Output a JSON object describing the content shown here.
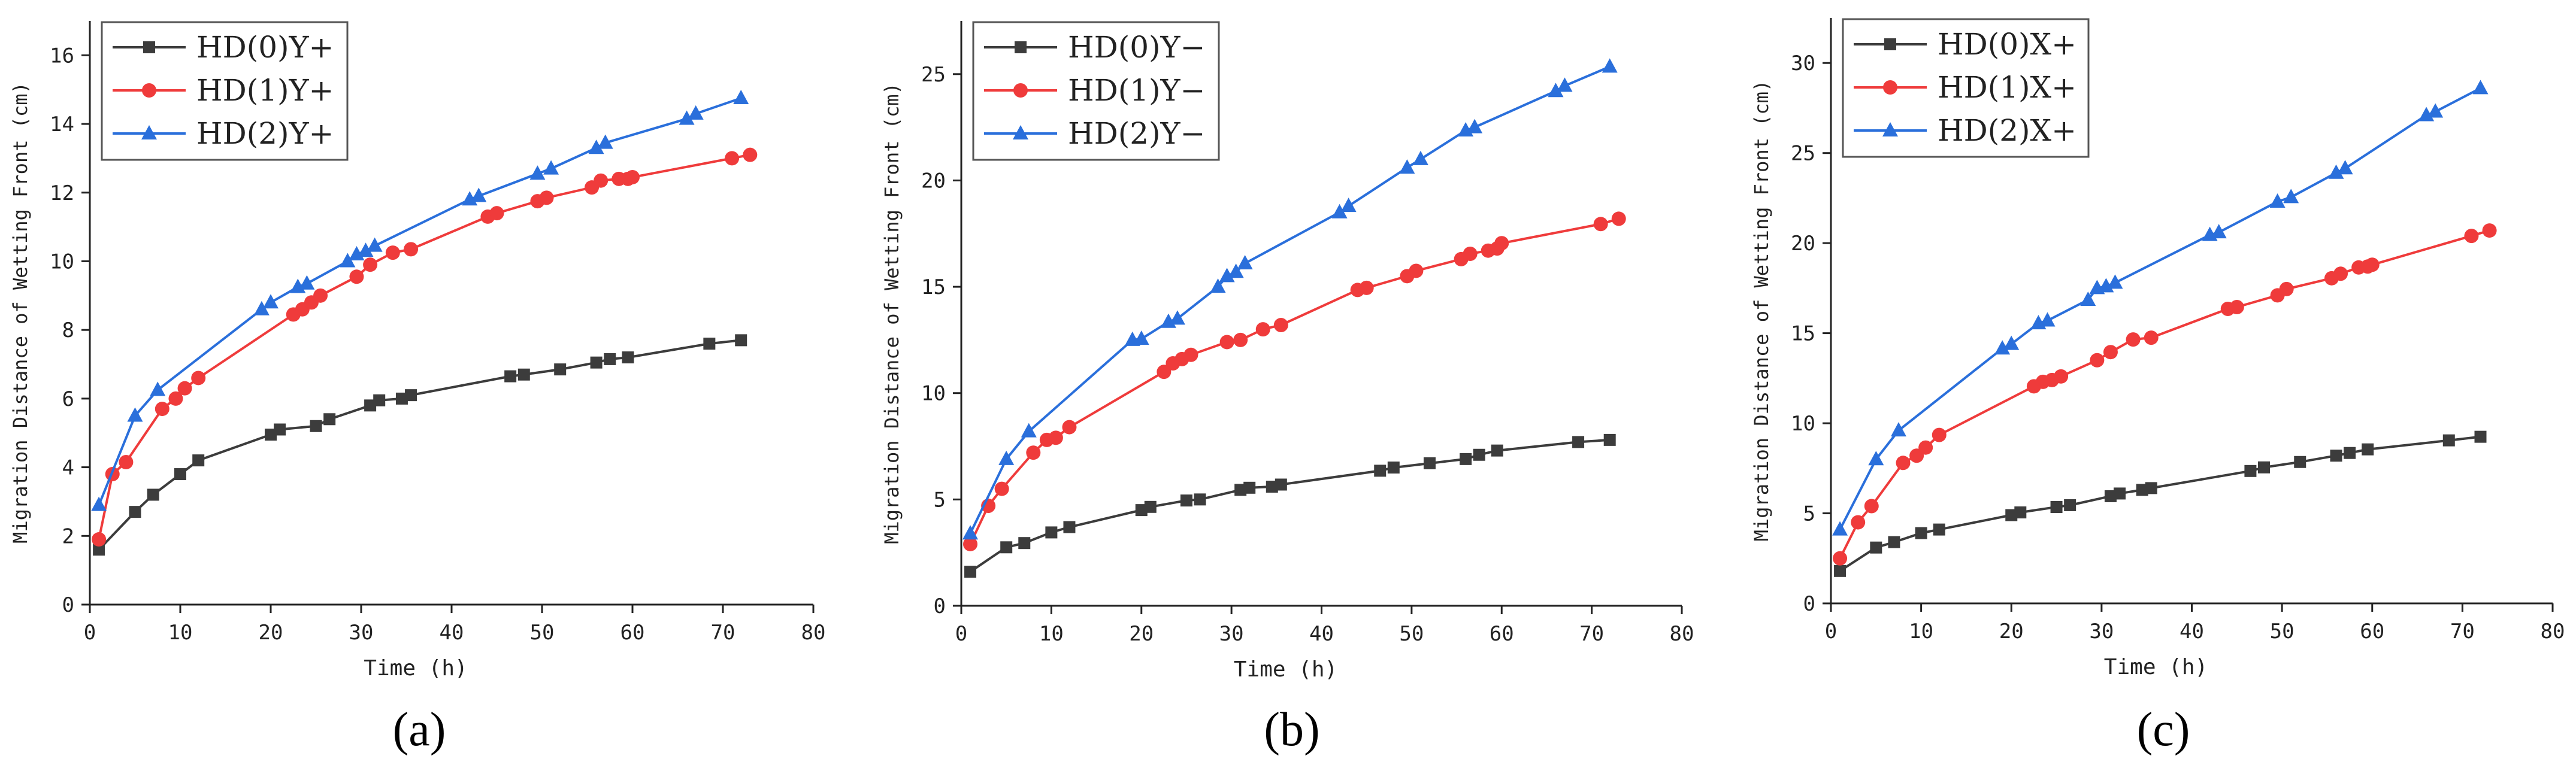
{
  "figure": {
    "colors": {
      "hd0": "#3c3c3c",
      "hd1": "#ef3b3b",
      "hd2": "#2a6fdb"
    }
  },
  "chart_data": [
    {
      "type": "line",
      "panel": "(a)",
      "xlabel": "Time (h)",
      "ylabel": "Migration Distance of Wetting Front (cm)",
      "xlim": [
        0,
        80
      ],
      "ylim": [
        0,
        17
      ],
      "xticks": [
        0,
        10,
        20,
        30,
        40,
        50,
        60,
        70,
        80
      ],
      "yticks": [
        0,
        2,
        4,
        6,
        8,
        10,
        12,
        14,
        16
      ],
      "legend_position": "top-left",
      "series": [
        {
          "name": "HD(0)Y+",
          "marker": "square",
          "color": "#3c3c3c",
          "x": [
            1,
            5,
            7,
            10,
            12,
            20,
            21,
            25,
            26.5,
            31,
            32,
            34.5,
            35.5,
            46.5,
            48,
            52,
            56,
            57.5,
            59.5,
            68.5,
            72
          ],
          "y": [
            1.6,
            2.7,
            3.2,
            3.8,
            4.2,
            4.95,
            5.1,
            5.2,
            5.4,
            5.8,
            5.95,
            6.0,
            6.1,
            6.65,
            6.7,
            6.85,
            7.05,
            7.15,
            7.2,
            7.6,
            7.7
          ]
        },
        {
          "name": "HD(1)Y+",
          "marker": "circle",
          "color": "#ef3b3b",
          "x": [
            1,
            2.5,
            4,
            8,
            9.5,
            10.5,
            12,
            22.5,
            23.5,
            24.5,
            25.5,
            29.5,
            31,
            33.5,
            35.5,
            44,
            45,
            49.5,
            50.5,
            55.5,
            56.5,
            58.5,
            59.5,
            60,
            71,
            73
          ],
          "y": [
            1.9,
            3.8,
            4.15,
            5.7,
            6.0,
            6.3,
            6.6,
            8.45,
            8.6,
            8.8,
            9.0,
            9.55,
            9.9,
            10.25,
            10.35,
            11.3,
            11.4,
            11.75,
            11.85,
            12.15,
            12.35,
            12.4,
            12.4,
            12.45,
            13.0,
            13.1
          ]
        },
        {
          "name": "HD(2)Y+",
          "marker": "triangle",
          "color": "#2a6fdb",
          "x": [
            1,
            5,
            7.5,
            19,
            20,
            23,
            24,
            28.5,
            29.5,
            30.5,
            31.5,
            42,
            43,
            49.5,
            51,
            56,
            57,
            66,
            67,
            72
          ],
          "y": [
            2.9,
            5.5,
            6.25,
            8.6,
            8.8,
            9.25,
            9.35,
            10.0,
            10.2,
            10.3,
            10.45,
            11.8,
            11.9,
            12.55,
            12.7,
            13.3,
            13.45,
            14.15,
            14.3,
            14.75
          ]
        }
      ]
    },
    {
      "type": "line",
      "panel": "(b)",
      "xlabel": "Time (h)",
      "ylabel": "Migration Distance of Wetting Front (cm)",
      "xlim": [
        0,
        80
      ],
      "ylim": [
        0,
        27.5
      ],
      "xticks": [
        0,
        10,
        20,
        30,
        40,
        50,
        60,
        70,
        80
      ],
      "yticks": [
        0,
        5,
        10,
        15,
        20,
        25
      ],
      "legend_position": "top-left",
      "series": [
        {
          "name": "HD(0)Y−",
          "marker": "square",
          "color": "#3c3c3c",
          "x": [
            1,
            5,
            7,
            10,
            12,
            20,
            21,
            25,
            26.5,
            31,
            32,
            34.5,
            35.5,
            46.5,
            48,
            52,
            56,
            57.5,
            59.5,
            68.5,
            72
          ],
          "y": [
            1.6,
            2.75,
            2.95,
            3.45,
            3.7,
            4.5,
            4.65,
            4.95,
            5.0,
            5.45,
            5.55,
            5.6,
            5.7,
            6.35,
            6.5,
            6.7,
            6.9,
            7.1,
            7.3,
            7.7,
            7.8
          ]
        },
        {
          "name": "HD(1)Y−",
          "marker": "circle",
          "color": "#ef3b3b",
          "x": [
            1,
            3,
            4.5,
            8,
            9.5,
            10.5,
            12,
            22.5,
            23.5,
            24.5,
            25.5,
            29.5,
            31,
            33.5,
            35.5,
            44,
            45,
            49.5,
            50.5,
            55.5,
            56.5,
            58.5,
            59.5,
            60,
            71,
            73
          ],
          "y": [
            2.9,
            4.7,
            5.5,
            7.2,
            7.8,
            7.9,
            8.4,
            11.0,
            11.4,
            11.6,
            11.8,
            12.4,
            12.5,
            13.0,
            13.2,
            14.85,
            14.95,
            15.5,
            15.75,
            16.3,
            16.55,
            16.7,
            16.8,
            17.05,
            17.95,
            18.2
          ]
        },
        {
          "name": "HD(2)Y−",
          "marker": "triangle",
          "color": "#2a6fdb",
          "x": [
            1,
            5,
            7.5,
            19,
            20,
            23,
            24,
            28.5,
            29.5,
            30.5,
            31.5,
            42,
            43,
            49.5,
            51,
            56,
            57,
            66,
            67,
            72
          ],
          "y": [
            3.4,
            6.9,
            8.2,
            12.5,
            12.55,
            13.35,
            13.5,
            15.0,
            15.5,
            15.7,
            16.1,
            18.5,
            18.8,
            20.6,
            21.0,
            22.35,
            22.5,
            24.2,
            24.45,
            25.35
          ]
        }
      ]
    },
    {
      "type": "line",
      "panel": "(c)",
      "xlabel": "Time (h)",
      "ylabel": "Migration Distance of Wetting Front (cm)",
      "xlim": [
        0,
        80
      ],
      "ylim": [
        0,
        32.5
      ],
      "xticks": [
        0,
        10,
        20,
        30,
        40,
        50,
        60,
        70,
        80
      ],
      "yticks": [
        0,
        5,
        10,
        15,
        20,
        25,
        30
      ],
      "legend_position": "top-left",
      "series": [
        {
          "name": "HD(0)X+",
          "marker": "square",
          "color": "#3c3c3c",
          "x": [
            1,
            5,
            7,
            10,
            12,
            20,
            21,
            25,
            26.5,
            31,
            32,
            34.5,
            35.5,
            46.5,
            48,
            52,
            56,
            57.5,
            59.5,
            68.5,
            72
          ],
          "y": [
            1.8,
            3.1,
            3.4,
            3.9,
            4.1,
            4.9,
            5.05,
            5.35,
            5.45,
            5.95,
            6.1,
            6.3,
            6.4,
            7.35,
            7.55,
            7.85,
            8.2,
            8.35,
            8.55,
            9.05,
            9.25
          ]
        },
        {
          "name": "HD(1)X+",
          "marker": "circle",
          "color": "#ef3b3b",
          "x": [
            1,
            3,
            4.5,
            8,
            9.5,
            10.5,
            12,
            22.5,
            23.5,
            24.5,
            25.5,
            29.5,
            31,
            33.5,
            35.5,
            44,
            45,
            49.5,
            50.5,
            55.5,
            56.5,
            58.5,
            59.5,
            60,
            71,
            73
          ],
          "y": [
            2.5,
            4.5,
            5.4,
            7.8,
            8.2,
            8.65,
            9.35,
            12.05,
            12.3,
            12.4,
            12.6,
            13.5,
            13.95,
            14.65,
            14.75,
            16.35,
            16.45,
            17.1,
            17.45,
            18.05,
            18.3,
            18.65,
            18.7,
            18.8,
            20.4,
            20.7
          ]
        },
        {
          "name": "HD(2)X+",
          "marker": "triangle",
          "color": "#2a6fdb",
          "x": [
            1,
            5,
            7.5,
            19,
            20,
            23,
            24,
            28.5,
            29.5,
            30.5,
            31.5,
            42,
            43,
            49.5,
            51,
            56,
            57,
            66,
            67,
            72
          ],
          "y": [
            4.1,
            8.0,
            9.6,
            14.15,
            14.4,
            15.55,
            15.7,
            16.85,
            17.5,
            17.6,
            17.8,
            20.45,
            20.6,
            22.3,
            22.55,
            23.9,
            24.15,
            27.1,
            27.3,
            28.6
          ]
        }
      ]
    }
  ]
}
